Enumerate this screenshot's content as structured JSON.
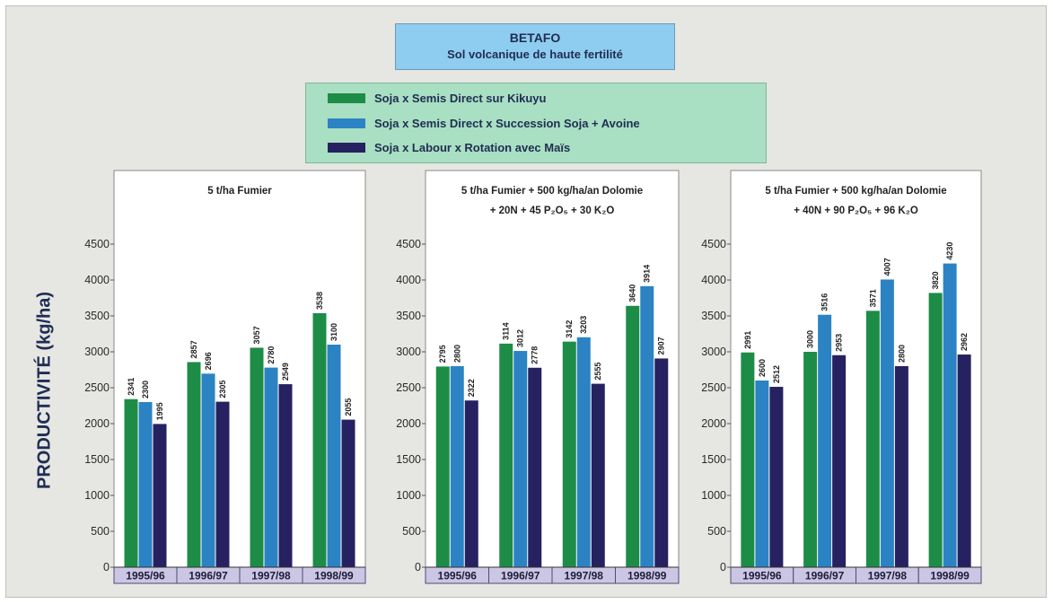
{
  "header": {
    "title": "BETAFO",
    "subtitle": "Sol volcanique de haute fertilité"
  },
  "legend": [
    {
      "label": "Soja x Semis Direct sur Kikuyu",
      "color": "#1d8c47"
    },
    {
      "label": "Soja x Semis Direct x Succession Soja + Avoine",
      "color": "#2b83c4"
    },
    {
      "label": "Soja x Labour x Rotation avec Maïs",
      "color": "#262160"
    }
  ],
  "ylabel": "PRODUCTIVITÉ (kg/ha)",
  "chart_data": [
    {
      "type": "bar",
      "title_lines": [
        "5 t/ha Fumier"
      ],
      "ylabel": "PRODUCTIVITÉ (kg/ha)",
      "ylim": [
        0,
        4500
      ],
      "yticks": [
        0,
        500,
        1000,
        1500,
        2000,
        2500,
        3000,
        3500,
        4000,
        4500
      ],
      "categories": [
        "1995/96",
        "1996/97",
        "1997/98",
        "1998/99"
      ],
      "series": [
        {
          "name": "Soja x Semis Direct sur Kikuyu",
          "values": [
            2341,
            2857,
            3057,
            3538
          ]
        },
        {
          "name": "Soja x Semis Direct x Succession Soja + Avoine",
          "values": [
            2300,
            2696,
            2780,
            3100
          ]
        },
        {
          "name": "Soja x Labour x Rotation avec Maïs",
          "values": [
            1995,
            2305,
            2549,
            2055
          ]
        }
      ]
    },
    {
      "type": "bar",
      "title_lines": [
        "5 t/ha Fumier + 500 kg/ha/an Dolomie",
        "+ 20N + 45 P₂O₅ + 30 K₂O"
      ],
      "ylabel": "PRODUCTIVITÉ (kg/ha)",
      "ylim": [
        0,
        4500
      ],
      "yticks": [
        0,
        500,
        1000,
        1500,
        2000,
        2500,
        3000,
        3500,
        4000,
        4500
      ],
      "categories": [
        "1995/96",
        "1996/97",
        "1997/98",
        "1998/99"
      ],
      "series": [
        {
          "name": "Soja x Semis Direct sur Kikuyu",
          "values": [
            2795,
            3114,
            3142,
            3640
          ]
        },
        {
          "name": "Soja x Semis Direct x Succession Soja + Avoine",
          "values": [
            2800,
            3012,
            3203,
            3914
          ]
        },
        {
          "name": "Soja x Labour x Rotation avec Maïs",
          "values": [
            2322,
            2778,
            2555,
            2907
          ]
        }
      ]
    },
    {
      "type": "bar",
      "title_lines": [
        "5 t/ha Fumier + 500 kg/ha/an Dolomie",
        "+ 40N + 90 P₂O₅ + 96 K₂O"
      ],
      "ylabel": "PRODUCTIVITÉ (kg/ha)",
      "ylim": [
        0,
        4500
      ],
      "yticks": [
        0,
        500,
        1000,
        1500,
        2000,
        2500,
        3000,
        3500,
        4000,
        4500
      ],
      "categories": [
        "1995/96",
        "1996/97",
        "1997/98",
        "1998/99"
      ],
      "series": [
        {
          "name": "Soja x Semis Direct sur Kikuyu",
          "values": [
            2991,
            3000,
            3571,
            3820
          ]
        },
        {
          "name": "Soja x Semis Direct x Succession Soja + Avoine",
          "values": [
            2600,
            3516,
            4007,
            4230
          ]
        },
        {
          "name": "Soja x Labour x Rotation avec Maïs",
          "values": [
            2512,
            2953,
            2800,
            2962
          ]
        }
      ]
    }
  ]
}
